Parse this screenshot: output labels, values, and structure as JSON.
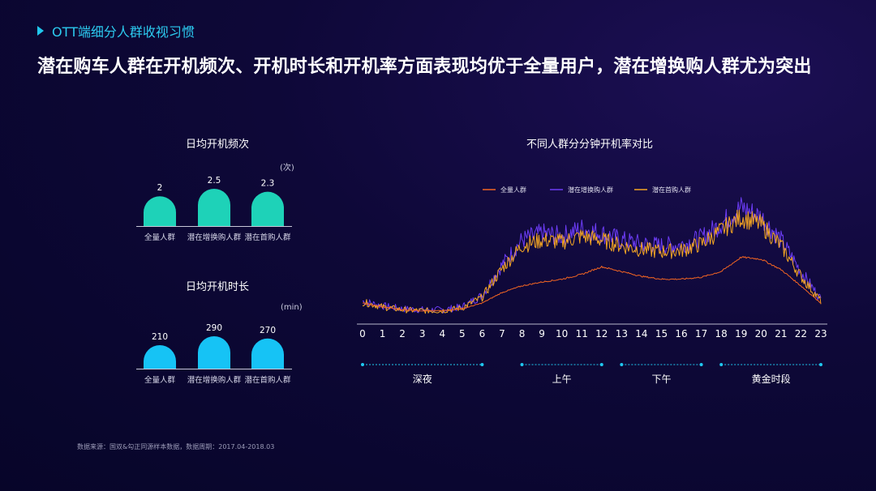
{
  "header": {
    "section_label": "OTT端细分人群收视习惯",
    "headline": "潜在购车人群在开机频次、开机时长和开机率方面表现均优于全量用户，潜在增换购人群尤为突出"
  },
  "colors": {
    "accent": "#20c7ee",
    "frequency_bar": "#1ed2b8",
    "duration_bar": "#16c3f5",
    "series_all": "#f26522",
    "series_upgrade": "#6c3cf5",
    "series_first": "#f5a623"
  },
  "chart_data": [
    {
      "type": "bar",
      "title": "日均开机频次",
      "unit": "(次)",
      "categories": [
        "全量人群",
        "潜在增换购人群",
        "潜在首购人群"
      ],
      "values": [
        2,
        2.5,
        2.3
      ],
      "value_labels": [
        "2",
        "2.5",
        "2.3"
      ],
      "ylim": [
        0,
        2.5
      ]
    },
    {
      "type": "bar",
      "title": "日均开机时长",
      "unit": "(min)",
      "categories": [
        "全量人群",
        "潜在增换购人群",
        "潜在首购人群"
      ],
      "values": [
        210,
        290,
        270
      ],
      "value_labels": [
        "210",
        "290",
        "270"
      ],
      "ylim": [
        0,
        290
      ]
    },
    {
      "type": "line",
      "title": "不同人群分分钟开机率对比",
      "x_ticks": [
        "0",
        "1",
        "2",
        "3",
        "4",
        "5",
        "6",
        "7",
        "8",
        "9",
        "10",
        "11",
        "12",
        "13",
        "14",
        "15",
        "16",
        "17",
        "18",
        "19",
        "20",
        "21",
        "22",
        "23"
      ],
      "legend_position": "top",
      "series": [
        {
          "name": "全量人群",
          "hourly": [
            0.22,
            0.18,
            0.15,
            0.14,
            0.14,
            0.16,
            0.22,
            0.33,
            0.4,
            0.44,
            0.47,
            0.52,
            0.6,
            0.55,
            0.5,
            0.47,
            0.47,
            0.49,
            0.55,
            0.7,
            0.68,
            0.57,
            0.4,
            0.22
          ],
          "noise": 0.01
        },
        {
          "name": "潜在增换购人群",
          "hourly": [
            0.24,
            0.19,
            0.16,
            0.15,
            0.15,
            0.18,
            0.3,
            0.62,
            0.88,
            0.95,
            0.92,
            1.0,
            0.95,
            0.88,
            0.84,
            0.82,
            0.83,
            0.9,
            1.05,
            1.22,
            1.12,
            0.88,
            0.55,
            0.26
          ],
          "noise": 0.09
        },
        {
          "name": "潜在首购人群",
          "hourly": [
            0.23,
            0.18,
            0.15,
            0.14,
            0.14,
            0.17,
            0.28,
            0.58,
            0.82,
            0.88,
            0.86,
            0.92,
            0.88,
            0.82,
            0.78,
            0.76,
            0.77,
            0.84,
            0.98,
            1.12,
            1.04,
            0.82,
            0.5,
            0.24
          ],
          "noise": 0.08
        }
      ],
      "time_periods": [
        {
          "label": "深夜",
          "start": 0,
          "end": 6
        },
        {
          "label": "上午",
          "start": 8,
          "end": 12
        },
        {
          "label": "下午",
          "start": 13,
          "end": 17
        },
        {
          "label": "黄金时段",
          "start": 18,
          "end": 23
        }
      ]
    }
  ],
  "footer": {
    "source_note": "数据来源：国双&勾正同源样本数据，数据周期：2017.04-2018.03"
  }
}
